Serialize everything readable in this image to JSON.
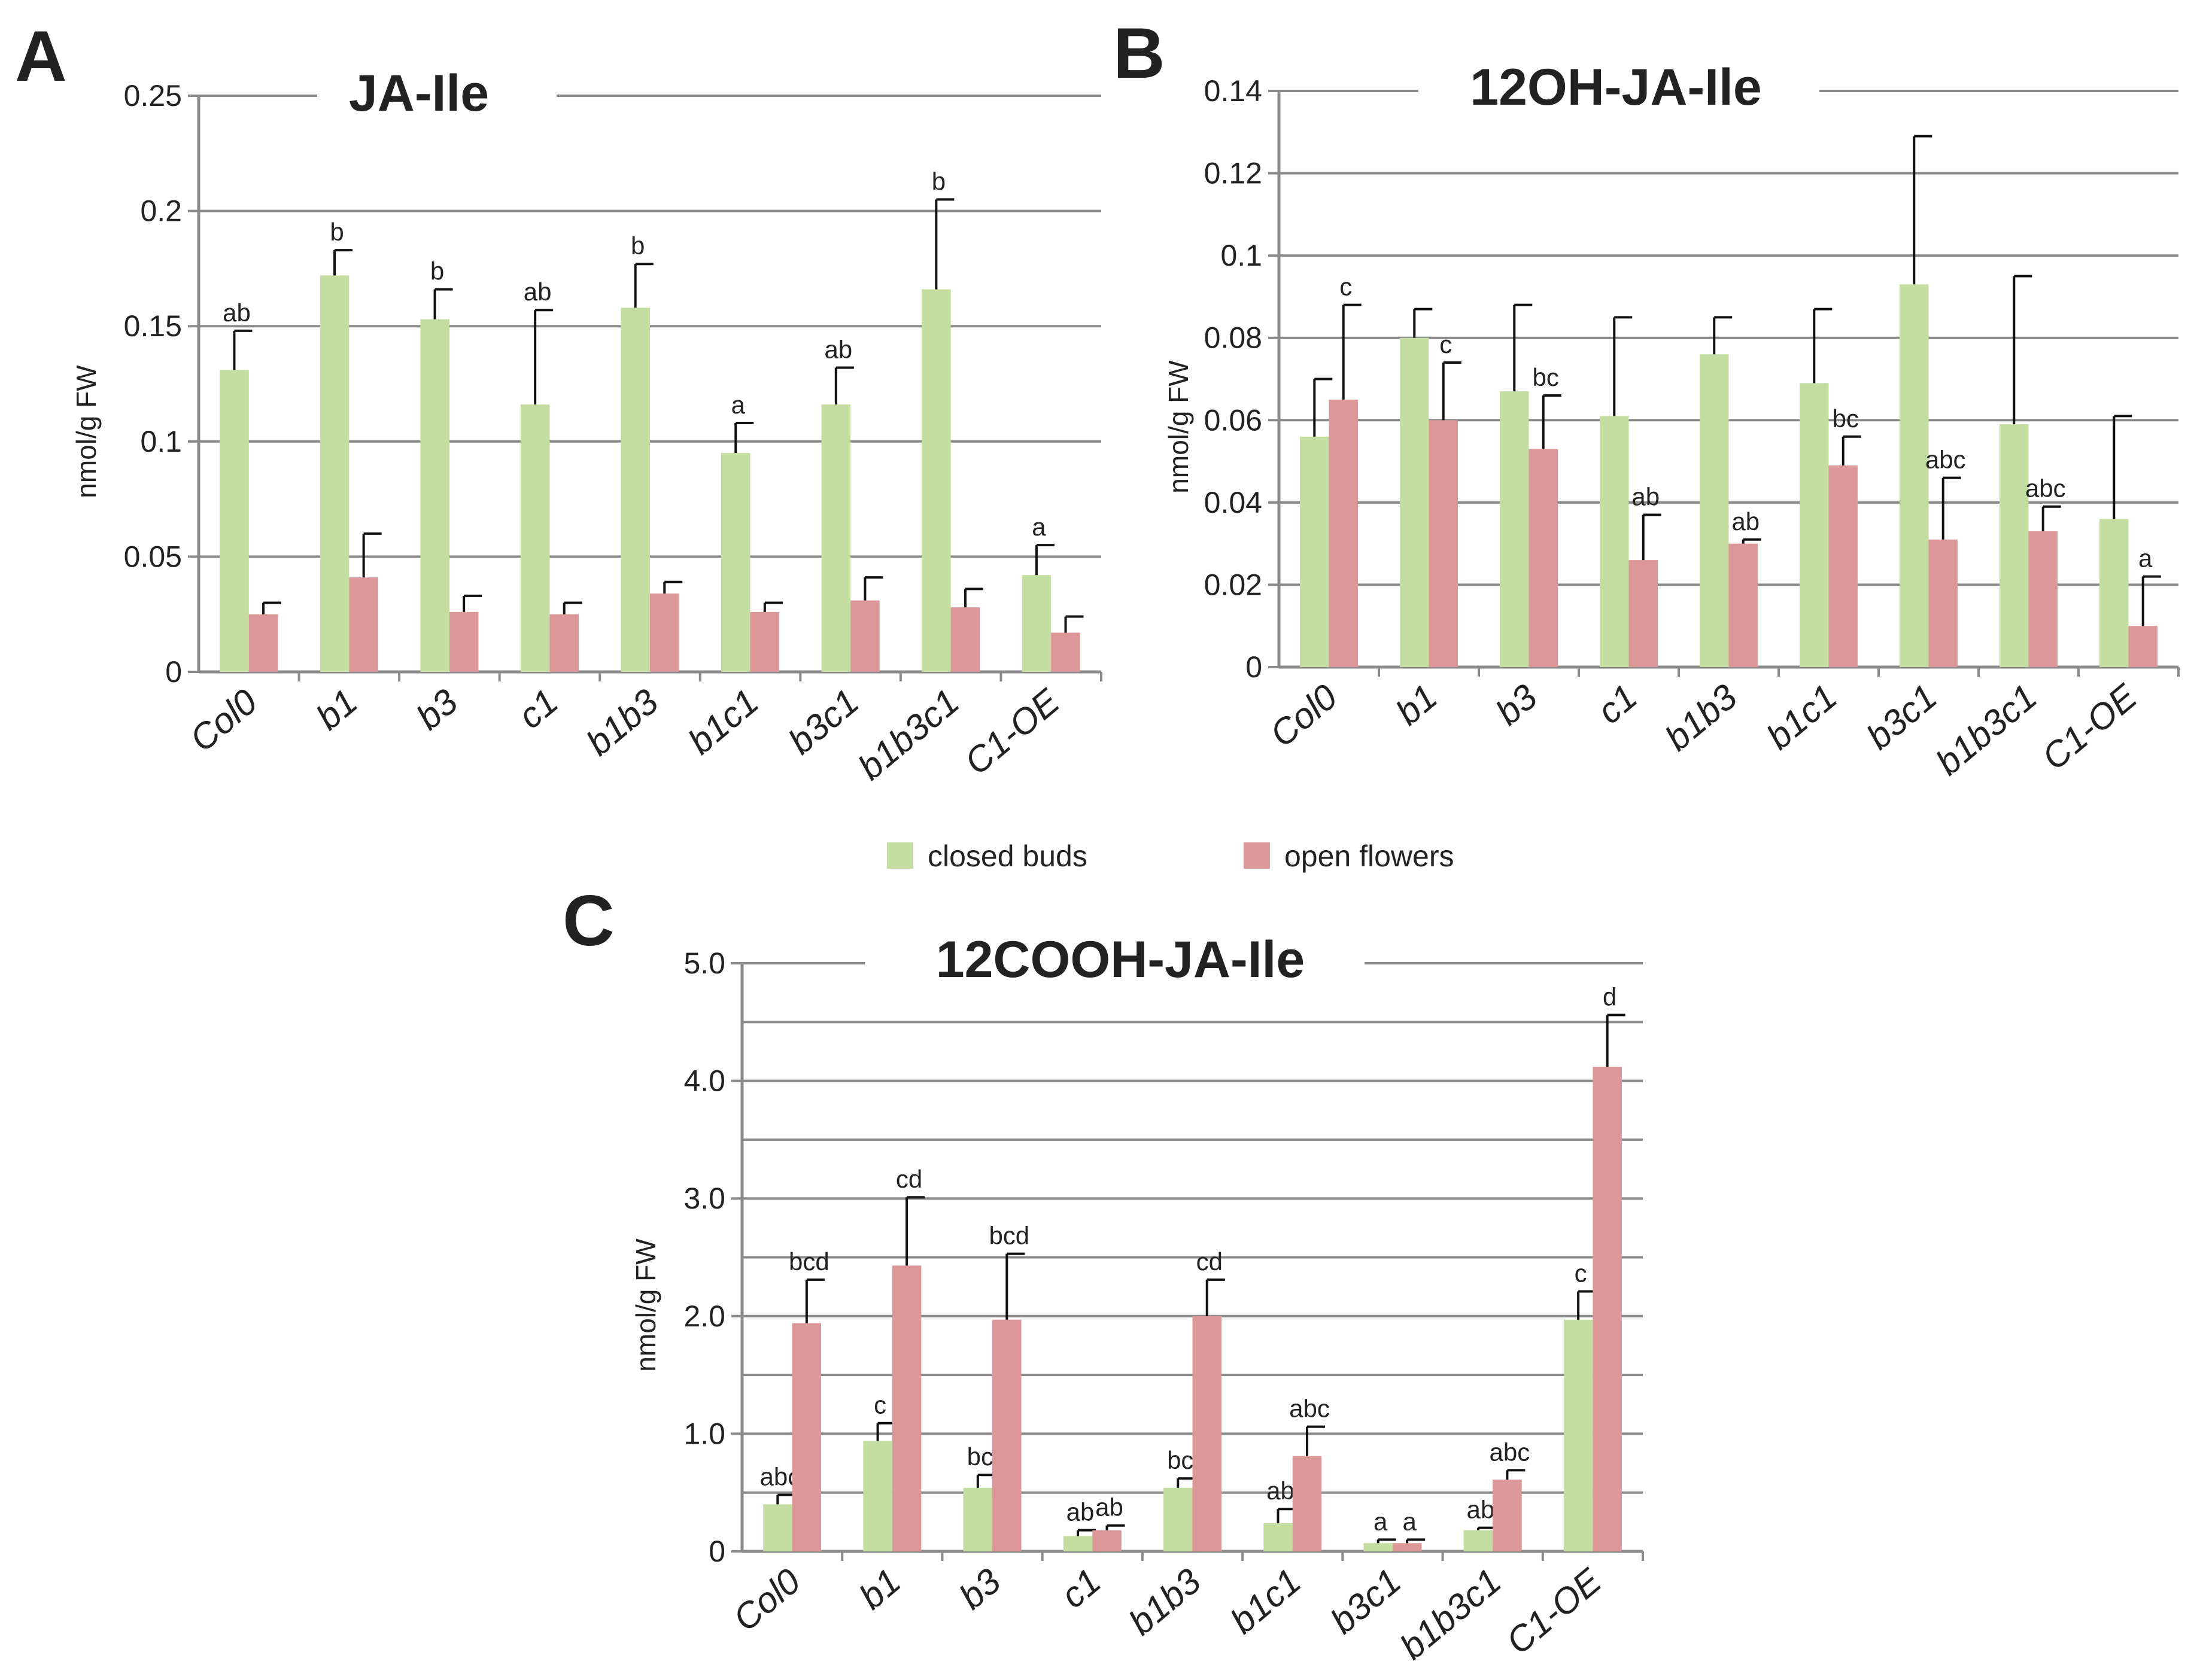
{
  "legend": [
    {
      "key": "buds",
      "label": "closed buds",
      "color": "#c4dda1"
    },
    {
      "key": "open",
      "label": "open flowers",
      "color": "#dc9898"
    }
  ],
  "chart_data": [
    {
      "type": "bar",
      "panel": "A",
      "title": "JA-Ile",
      "ylabel": "nmol/g FW",
      "ylim": [
        0,
        0.25
      ],
      "yticks": [
        "0",
        "0.05",
        "0.1",
        "0.15",
        "0.2",
        "0.25"
      ],
      "grid": true,
      "categories": [
        "Col0",
        "b1",
        "b3",
        "c1",
        "b1b3",
        "b1c1",
        "b3c1",
        "b1b3c1",
        "C1-OE"
      ],
      "series": [
        {
          "name": "closed buds",
          "values": [
            0.131,
            0.172,
            0.153,
            0.116,
            0.158,
            0.095,
            0.116,
            0.166,
            0.042
          ],
          "error": [
            0.017,
            0.011,
            0.013,
            0.041,
            0.019,
            0.013,
            0.016,
            0.039,
            0.013
          ],
          "labels": [
            "ab",
            "b",
            "b",
            "ab",
            "b",
            "a",
            "ab",
            "b",
            "a"
          ]
        },
        {
          "name": "open flowers",
          "values": [
            0.025,
            0.041,
            0.026,
            0.025,
            0.034,
            0.026,
            0.031,
            0.028,
            0.017
          ],
          "error": [
            0.005,
            0.019,
            0.007,
            0.005,
            0.005,
            0.004,
            0.01,
            0.008,
            0.007
          ],
          "labels": [
            "",
            "",
            "",
            "",
            "",
            "",
            "",
            "",
            ""
          ]
        }
      ]
    },
    {
      "type": "bar",
      "panel": "B",
      "title": "12OH-JA-Ile",
      "ylabel": "nmol/g FW",
      "ylim": [
        0,
        0.14
      ],
      "yticks": [
        "0",
        "0.02",
        "0.04",
        "0.06",
        "0.08",
        "0.1",
        "0.12",
        "0.14"
      ],
      "grid": true,
      "categories": [
        "Col0",
        "b1",
        "b3",
        "c1",
        "b1b3",
        "b1c1",
        "b3c1",
        "b1b3c1",
        "C1-OE"
      ],
      "series": [
        {
          "name": "closed buds",
          "values": [
            0.056,
            0.08,
            0.067,
            0.061,
            0.076,
            0.069,
            0.093,
            0.059,
            0.036
          ],
          "error": [
            0.014,
            0.007,
            0.021,
            0.024,
            0.009,
            0.018,
            0.036,
            0.036,
            0.025
          ],
          "labels": [
            "",
            "",
            "",
            "",
            "",
            "",
            "",
            "",
            ""
          ]
        },
        {
          "name": "open flowers",
          "values": [
            0.065,
            0.06,
            0.053,
            0.026,
            0.03,
            0.049,
            0.031,
            0.033,
            0.01
          ],
          "error": [
            0.023,
            0.014,
            0.013,
            0.011,
            0.001,
            0.007,
            0.015,
            0.006,
            0.012
          ],
          "labels": [
            "c",
            "c",
            "bc",
            "ab",
            "ab",
            "bc",
            "abc",
            "abc",
            "a"
          ]
        }
      ]
    },
    {
      "type": "bar",
      "panel": "C",
      "title": "12COOH-JA-Ile",
      "ylabel": "nmol/g FW",
      "ylim": [
        0,
        5.0
      ],
      "yticks": [
        "0",
        "1.0",
        "2.0",
        "3.0",
        "4.0",
        "5.0"
      ],
      "gridstep": 0.5,
      "grid": true,
      "categories": [
        "Col0",
        "b1",
        "b3",
        "c1",
        "b1b3",
        "b1c1",
        "b3c1",
        "b1b3c1",
        "C1-OE"
      ],
      "series": [
        {
          "name": "closed buds",
          "values": [
            0.4,
            0.94,
            0.54,
            0.13,
            0.54,
            0.24,
            0.07,
            0.18,
            1.97
          ],
          "error": [
            0.08,
            0.15,
            0.11,
            0.05,
            0.08,
            0.12,
            0.03,
            0.02,
            0.24
          ],
          "labels": [
            "abc",
            "c",
            "bc",
            "ab",
            "bc",
            "ab",
            "a",
            "ab",
            "c"
          ]
        },
        {
          "name": "open flowers",
          "values": [
            1.94,
            2.43,
            1.97,
            0.18,
            2.0,
            0.81,
            0.07,
            0.61,
            4.12
          ],
          "error": [
            0.37,
            0.58,
            0.56,
            0.04,
            0.31,
            0.25,
            0.03,
            0.08,
            0.44
          ],
          "labels": [
            "bcd",
            "cd",
            "bcd",
            "ab",
            "cd",
            "abc",
            "a",
            "abc",
            "d"
          ]
        }
      ]
    }
  ]
}
